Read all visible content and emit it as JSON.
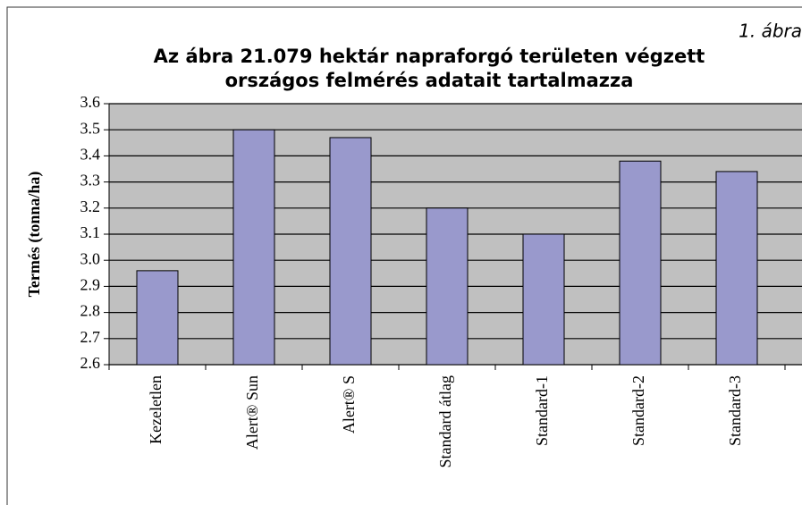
{
  "chart_data": {
    "type": "bar",
    "annotation": "1. ábra",
    "title": [
      "Az ábra 21.079 hektár napraforgó területen végzett",
      "országos felmérés adatait tartalmazza"
    ],
    "y_label": "Termés (tonna/ha)",
    "categories": [
      "Kezeletlen",
      "Alert® Sun",
      "Alert® S",
      "Standard átlag",
      "Standard-1",
      "Standard-2",
      "Standard-3"
    ],
    "values": [
      2.96,
      3.5,
      3.47,
      3.2,
      3.1,
      3.38,
      3.34
    ],
    "color": "#9999cc",
    "ylim": [
      2.6,
      3.6
    ],
    "yticks": [
      2.6,
      2.7,
      2.8,
      2.9,
      {
        "value": 3.0,
        "label": "3.0"
      },
      3.1,
      3.2,
      3.3,
      3.4,
      3.5,
      3.6
    ],
    "grid": true
  }
}
